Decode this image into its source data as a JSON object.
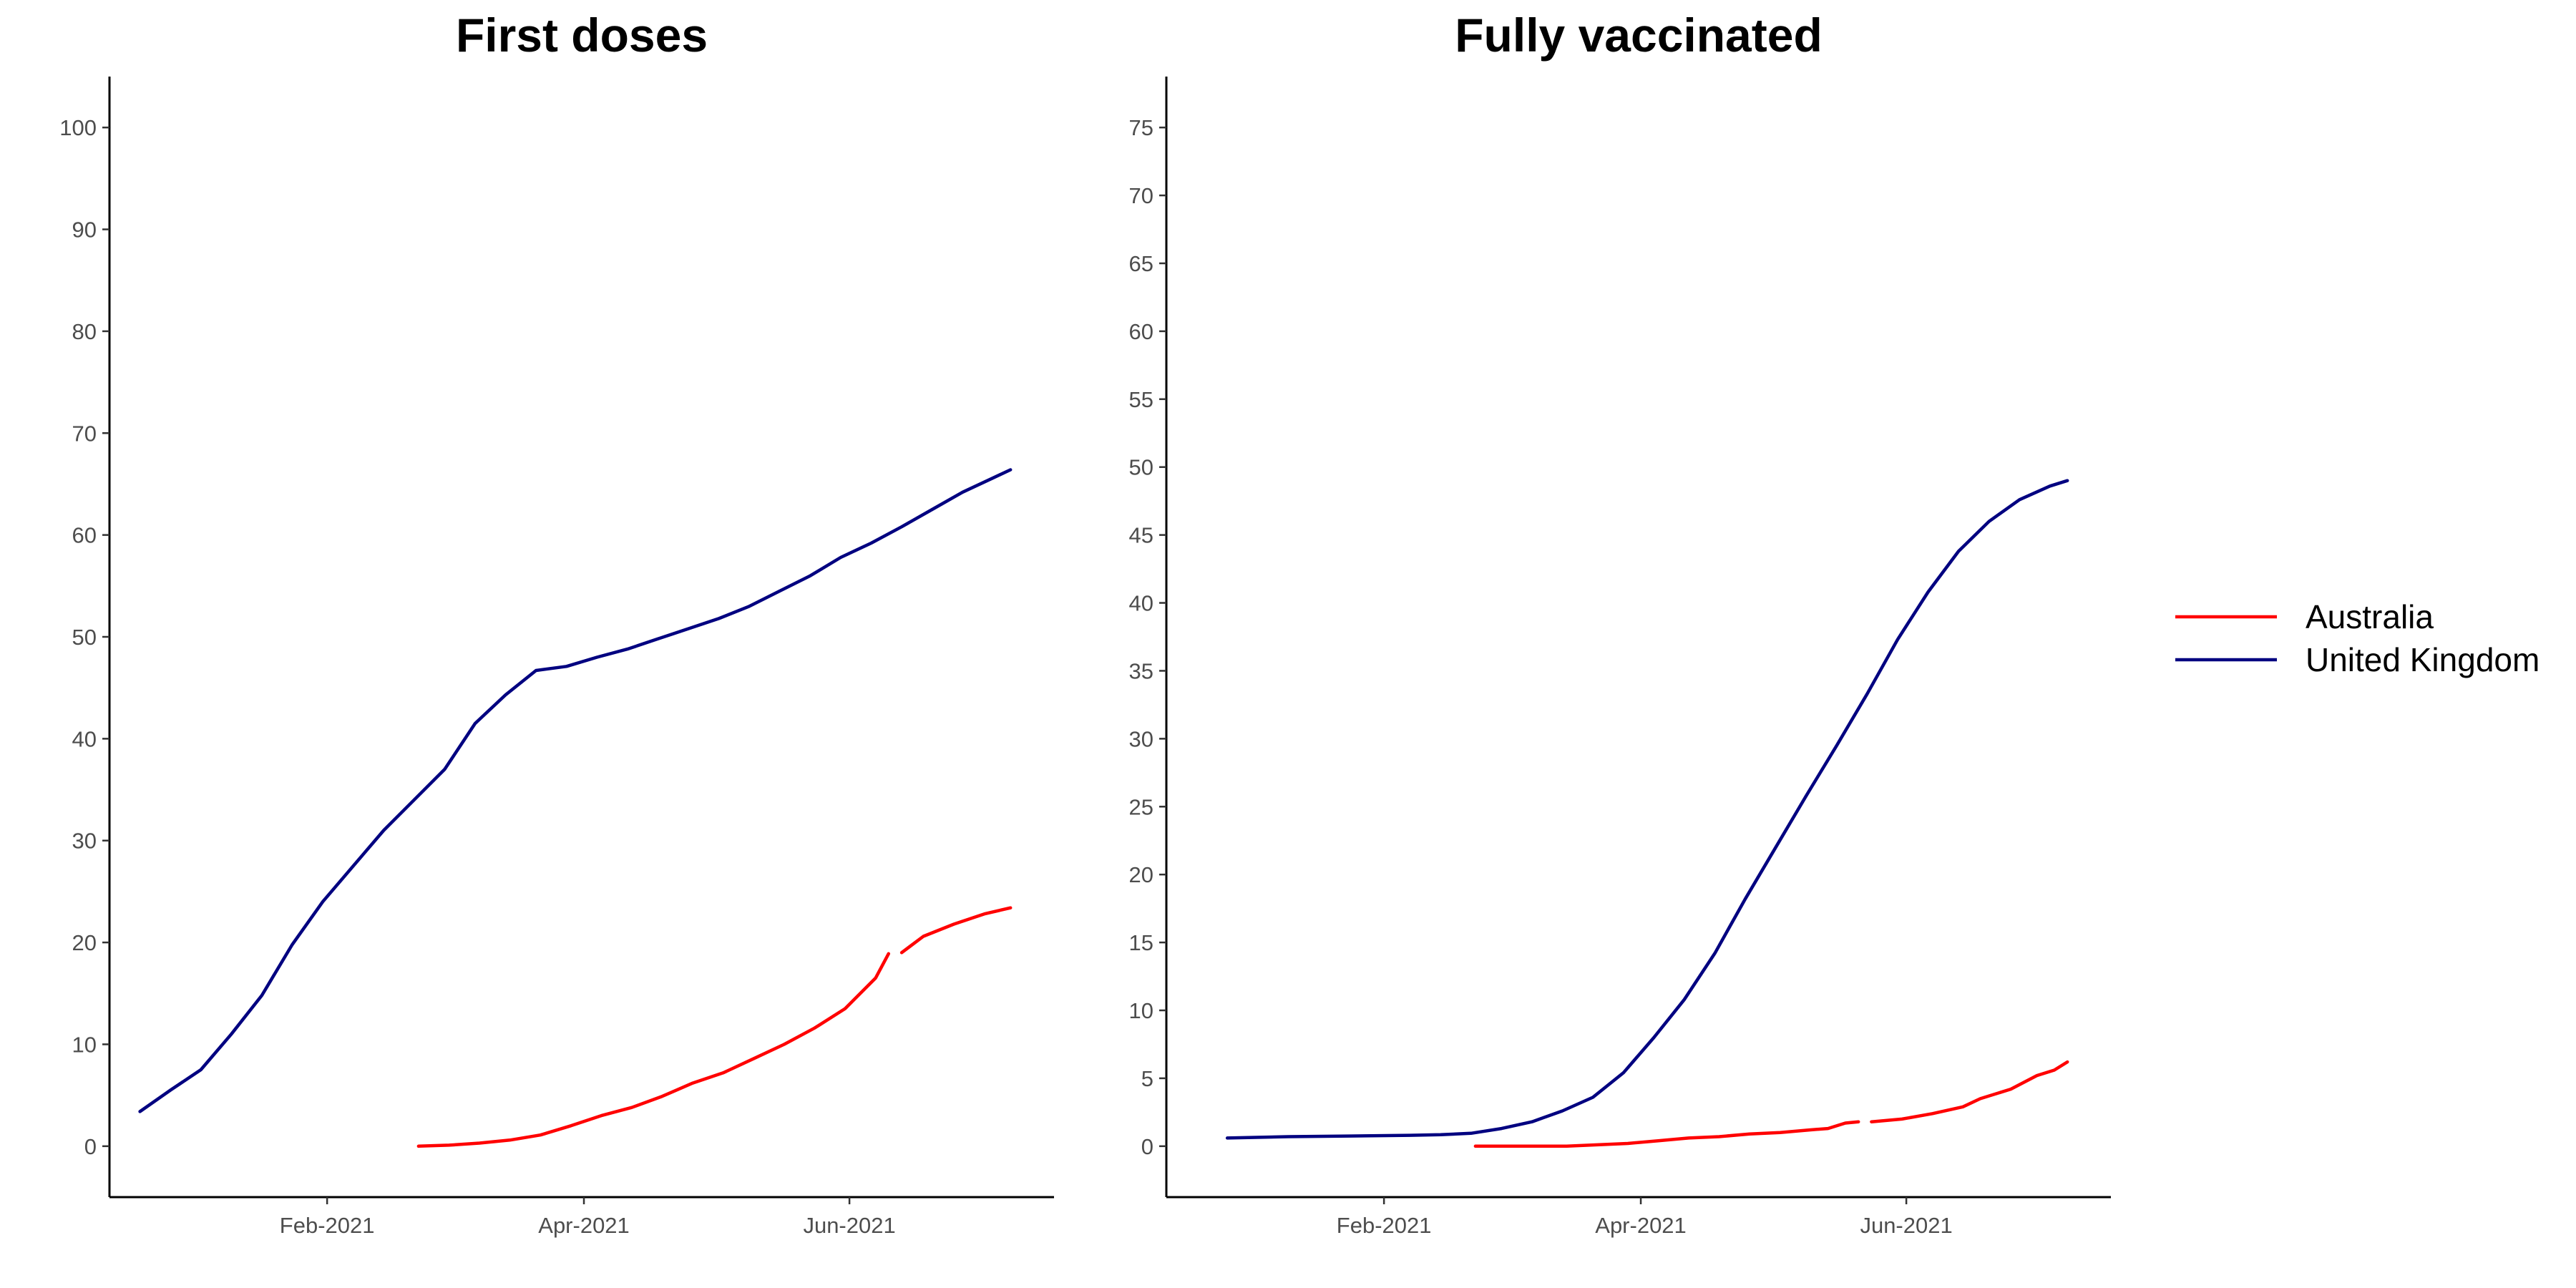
{
  "chart_data": [
    {
      "type": "line",
      "title": "First doses",
      "xlabel": "",
      "ylabel": "",
      "x_range": [
        "2020-12-13",
        "2021-07-18"
      ],
      "x_ticks": [
        {
          "date": "2021-02-01",
          "label": "Feb-2021"
        },
        {
          "date": "2021-04-01",
          "label": "Apr-2021"
        },
        {
          "date": "2021-06-01",
          "label": "Jun-2021"
        }
      ],
      "ylim": [
        -5,
        105
      ],
      "y_ticks": [
        {
          "value": 0,
          "label": "0"
        },
        {
          "value": 10,
          "label": "10"
        },
        {
          "value": 20,
          "label": "20"
        },
        {
          "value": 30,
          "label": "30"
        },
        {
          "value": 40,
          "label": "40"
        },
        {
          "value": 50,
          "label": "50"
        },
        {
          "value": 60,
          "label": "60"
        },
        {
          "value": 70,
          "label": "70"
        },
        {
          "value": 80,
          "label": "80"
        },
        {
          "value": 90,
          "label": "90"
        },
        {
          "value": 100,
          "label": "100"
        }
      ],
      "grid": false,
      "series": [
        {
          "name": "Australia",
          "color": "#ff0000",
          "segments": [
            [
              [
                "2021-02-22",
                0
              ],
              [
                "2021-03-01",
                0.1
              ],
              [
                "2021-03-08",
                0.3
              ],
              [
                "2021-03-15",
                0.6
              ],
              [
                "2021-03-22",
                1.1
              ],
              [
                "2021-03-29",
                2.0
              ],
              [
                "2021-04-05",
                3.0
              ],
              [
                "2021-04-12",
                3.8
              ],
              [
                "2021-04-19",
                4.9
              ],
              [
                "2021-04-26",
                6.2
              ],
              [
                "2021-05-03",
                7.2
              ],
              [
                "2021-05-10",
                8.6
              ],
              [
                "2021-05-17",
                10.0
              ],
              [
                "2021-05-24",
                11.6
              ],
              [
                "2021-05-31",
                13.5
              ],
              [
                "2021-06-07",
                16.5
              ],
              [
                "2021-06-10",
                18.9
              ]
            ],
            [
              [
                "2021-06-13",
                19.0
              ],
              [
                "2021-06-18",
                20.6
              ],
              [
                "2021-06-25",
                21.8
              ],
              [
                "2021-07-02",
                22.8
              ],
              [
                "2021-07-08",
                23.4
              ]
            ]
          ]
        },
        {
          "name": "United Kingdom",
          "color": "#000080",
          "segments": [
            [
              [
                "2020-12-20",
                3.4
              ],
              [
                "2020-12-27",
                5.5
              ],
              [
                "2021-01-03",
                7.5
              ],
              [
                "2021-01-10",
                11.0
              ],
              [
                "2021-01-17",
                14.8
              ],
              [
                "2021-01-24",
                19.8
              ],
              [
                "2021-01-31",
                24.0
              ],
              [
                "2021-02-07",
                27.5
              ],
              [
                "2021-02-14",
                31.0
              ],
              [
                "2021-02-21",
                34.0
              ],
              [
                "2021-02-28",
                37.0
              ],
              [
                "2021-03-07",
                41.5
              ],
              [
                "2021-03-14",
                44.3
              ],
              [
                "2021-03-21",
                46.7
              ],
              [
                "2021-03-28",
                47.1
              ],
              [
                "2021-04-04",
                48.0
              ],
              [
                "2021-04-11",
                48.8
              ],
              [
                "2021-04-18",
                49.8
              ],
              [
                "2021-04-25",
                50.8
              ],
              [
                "2021-05-02",
                51.8
              ],
              [
                "2021-05-09",
                53.0
              ],
              [
                "2021-05-16",
                54.5
              ],
              [
                "2021-05-23",
                56.0
              ],
              [
                "2021-05-30",
                57.8
              ],
              [
                "2021-06-06",
                59.2
              ],
              [
                "2021-06-13",
                60.8
              ],
              [
                "2021-06-20",
                62.5
              ],
              [
                "2021-06-27",
                64.2
              ],
              [
                "2021-07-04",
                65.6
              ],
              [
                "2021-07-08",
                66.4
              ]
            ]
          ]
        }
      ]
    },
    {
      "type": "line",
      "title": "Fully vaccinated",
      "xlabel": "",
      "ylabel": "",
      "x_range": [
        "2020-12-13",
        "2021-07-18"
      ],
      "x_ticks": [
        {
          "date": "2021-02-01",
          "label": "Feb-2021"
        },
        {
          "date": "2021-04-01",
          "label": "Apr-2021"
        },
        {
          "date": "2021-06-01",
          "label": "Jun-2021"
        }
      ],
      "ylim": [
        -3.75,
        78.75
      ],
      "y_ticks": [
        {
          "value": 0,
          "label": "0"
        },
        {
          "value": 5,
          "label": "5"
        },
        {
          "value": 10,
          "label": "10"
        },
        {
          "value": 15,
          "label": "15"
        },
        {
          "value": 20,
          "label": "20"
        },
        {
          "value": 25,
          "label": "25"
        },
        {
          "value": 30,
          "label": "30"
        },
        {
          "value": 35,
          "label": "35"
        },
        {
          "value": 40,
          "label": "40"
        },
        {
          "value": 45,
          "label": "45"
        },
        {
          "value": 50,
          "label": "50"
        },
        {
          "value": 55,
          "label": "55"
        },
        {
          "value": 60,
          "label": "60"
        },
        {
          "value": 65,
          "label": "65"
        },
        {
          "value": 70,
          "label": "70"
        },
        {
          "value": 75,
          "label": "75"
        }
      ],
      "grid": false,
      "series": [
        {
          "name": "Australia",
          "color": "#ff0000",
          "segments": [
            [
              [
                "2021-02-22",
                0
              ],
              [
                "2021-03-08",
                0
              ],
              [
                "2021-03-15",
                0
              ],
              [
                "2021-03-22",
                0.1
              ],
              [
                "2021-03-29",
                0.2
              ],
              [
                "2021-04-05",
                0.4
              ],
              [
                "2021-04-12",
                0.6
              ],
              [
                "2021-04-19",
                0.7
              ],
              [
                "2021-04-26",
                0.9
              ],
              [
                "2021-05-03",
                1.0
              ],
              [
                "2021-05-10",
                1.2
              ],
              [
                "2021-05-14",
                1.3
              ],
              [
                "2021-05-18",
                1.7
              ],
              [
                "2021-05-21",
                1.8
              ]
            ],
            [
              [
                "2021-05-24",
                1.8
              ],
              [
                "2021-05-31",
                2.0
              ],
              [
                "2021-06-07",
                2.4
              ],
              [
                "2021-06-14",
                2.9
              ],
              [
                "2021-06-18",
                3.5
              ],
              [
                "2021-06-25",
                4.2
              ],
              [
                "2021-07-01",
                5.2
              ],
              [
                "2021-07-05",
                5.6
              ],
              [
                "2021-07-08",
                6.2
              ]
            ]
          ]
        },
        {
          "name": "United Kingdom",
          "color": "#000080",
          "segments": [
            [
              [
                "2020-12-27",
                0.6
              ],
              [
                "2021-01-10",
                0.7
              ],
              [
                "2021-01-24",
                0.75
              ],
              [
                "2021-02-07",
                0.8
              ],
              [
                "2021-02-14",
                0.85
              ],
              [
                "2021-02-21",
                0.95
              ],
              [
                "2021-02-28",
                1.3
              ],
              [
                "2021-03-07",
                1.8
              ],
              [
                "2021-03-14",
                2.6
              ],
              [
                "2021-03-21",
                3.6
              ],
              [
                "2021-03-28",
                5.4
              ],
              [
                "2021-04-04",
                8.0
              ],
              [
                "2021-04-11",
                10.8
              ],
              [
                "2021-04-18",
                14.2
              ],
              [
                "2021-04-25",
                18.2
              ],
              [
                "2021-05-02",
                22.0
              ],
              [
                "2021-05-09",
                25.8
              ],
              [
                "2021-05-16",
                29.5
              ],
              [
                "2021-05-23",
                33.3
              ],
              [
                "2021-05-30",
                37.3
              ],
              [
                "2021-06-06",
                40.8
              ],
              [
                "2021-06-13",
                43.8
              ],
              [
                "2021-06-20",
                46.0
              ],
              [
                "2021-06-27",
                47.6
              ],
              [
                "2021-07-04",
                48.6
              ],
              [
                "2021-07-08",
                49.0
              ]
            ]
          ]
        }
      ]
    }
  ],
  "legend": {
    "placement": "right",
    "entries": [
      {
        "name": "Australia",
        "color": "#ff0000"
      },
      {
        "name": "United Kingdom",
        "color": "#000080"
      }
    ]
  }
}
